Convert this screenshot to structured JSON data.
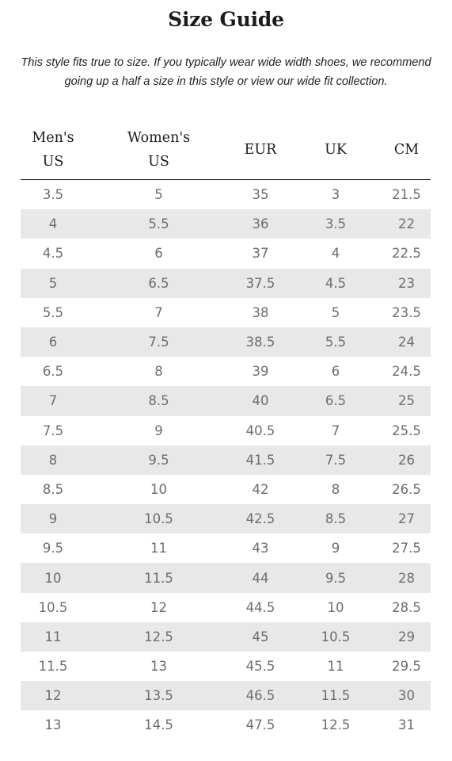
{
  "page": {
    "title": "Size Guide",
    "note": "This style fits true to size. If you typically wear wide width shoes, we recommend going up a half a size in this style or view our wide fit collection."
  },
  "table": {
    "headers": [
      {
        "line1": "Men's",
        "line2": "US"
      },
      {
        "line1": "Women's",
        "line2": "US"
      },
      {
        "line1": "EUR",
        "line2": ""
      },
      {
        "line1": "UK",
        "line2": ""
      },
      {
        "line1": "CM",
        "line2": ""
      }
    ],
    "rows": [
      [
        "3.5",
        "5",
        "35",
        "3",
        "21.5"
      ],
      [
        "4",
        "5.5",
        "36",
        "3.5",
        "22"
      ],
      [
        "4.5",
        "6",
        "37",
        "4",
        "22.5"
      ],
      [
        "5",
        "6.5",
        "37.5",
        "4.5",
        "23"
      ],
      [
        "5.5",
        "7",
        "38",
        "5",
        "23.5"
      ],
      [
        "6",
        "7.5",
        "38.5",
        "5.5",
        "24"
      ],
      [
        "6.5",
        "8",
        "39",
        "6",
        "24.5"
      ],
      [
        "7",
        "8.5",
        "40",
        "6.5",
        "25"
      ],
      [
        "7.5",
        "9",
        "40.5",
        "7",
        "25.5"
      ],
      [
        "8",
        "9.5",
        "41.5",
        "7.5",
        "26"
      ],
      [
        "8.5",
        "10",
        "42",
        "8",
        "26.5"
      ],
      [
        "9",
        "10.5",
        "42.5",
        "8.5",
        "27"
      ],
      [
        "9.5",
        "11",
        "43",
        "9",
        "27.5"
      ],
      [
        "10",
        "11.5",
        "44",
        "9.5",
        "28"
      ],
      [
        "10.5",
        "12",
        "44.5",
        "10",
        "28.5"
      ],
      [
        "11",
        "12.5",
        "45",
        "10.5",
        "29"
      ],
      [
        "11.5",
        "13",
        "45.5",
        "11",
        "29.5"
      ],
      [
        "12",
        "13.5",
        "46.5",
        "11.5",
        "30"
      ],
      [
        "13",
        "14.5",
        "47.5",
        "12.5",
        "31"
      ]
    ]
  },
  "colors": {
    "stripe": "#e8e8e8",
    "cell_text": "#6d6d6d",
    "heading_text": "#1b1b1b"
  }
}
